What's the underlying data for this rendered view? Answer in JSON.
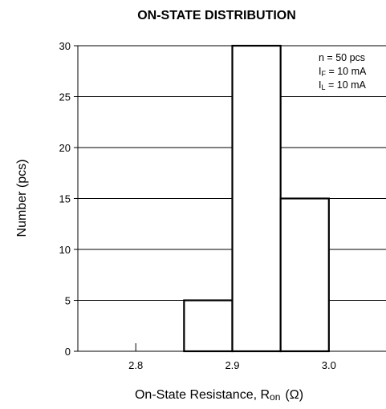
{
  "chart_data": {
    "type": "bar",
    "title": "ON-STATE DISTRIBUTION",
    "xlabel": "On-State Resistance, R",
    "xlabel_subscript": "on",
    "xlabel_unit": "(Ω)",
    "ylabel": "Number (pcs)",
    "bins": [
      {
        "from": 2.85,
        "to": 2.9,
        "value": 5
      },
      {
        "from": 2.9,
        "to": 2.95,
        "value": 30
      },
      {
        "from": 2.95,
        "to": 3.0,
        "value": 15
      }
    ],
    "x_ticks": [
      "2.8",
      "2.9",
      "3.0"
    ],
    "x_tick_values": [
      2.8,
      2.9,
      3.0
    ],
    "y_ticks": [
      "0",
      "5",
      "10",
      "15",
      "20",
      "25",
      "30"
    ],
    "y_tick_values": [
      0,
      5,
      10,
      15,
      20,
      25,
      30
    ],
    "xlim": [
      2.74,
      3.06
    ],
    "ylim": [
      0,
      30
    ],
    "grid": "horizontal",
    "annotations": [
      {
        "main": "n = 50 pcs",
        "sub": ""
      },
      {
        "main": "I",
        "sub": "F",
        "rest": " = 10 mA"
      },
      {
        "main": "I",
        "sub": "L",
        "rest": " = 10 mA"
      }
    ],
    "annotation_placement": "top-right"
  }
}
